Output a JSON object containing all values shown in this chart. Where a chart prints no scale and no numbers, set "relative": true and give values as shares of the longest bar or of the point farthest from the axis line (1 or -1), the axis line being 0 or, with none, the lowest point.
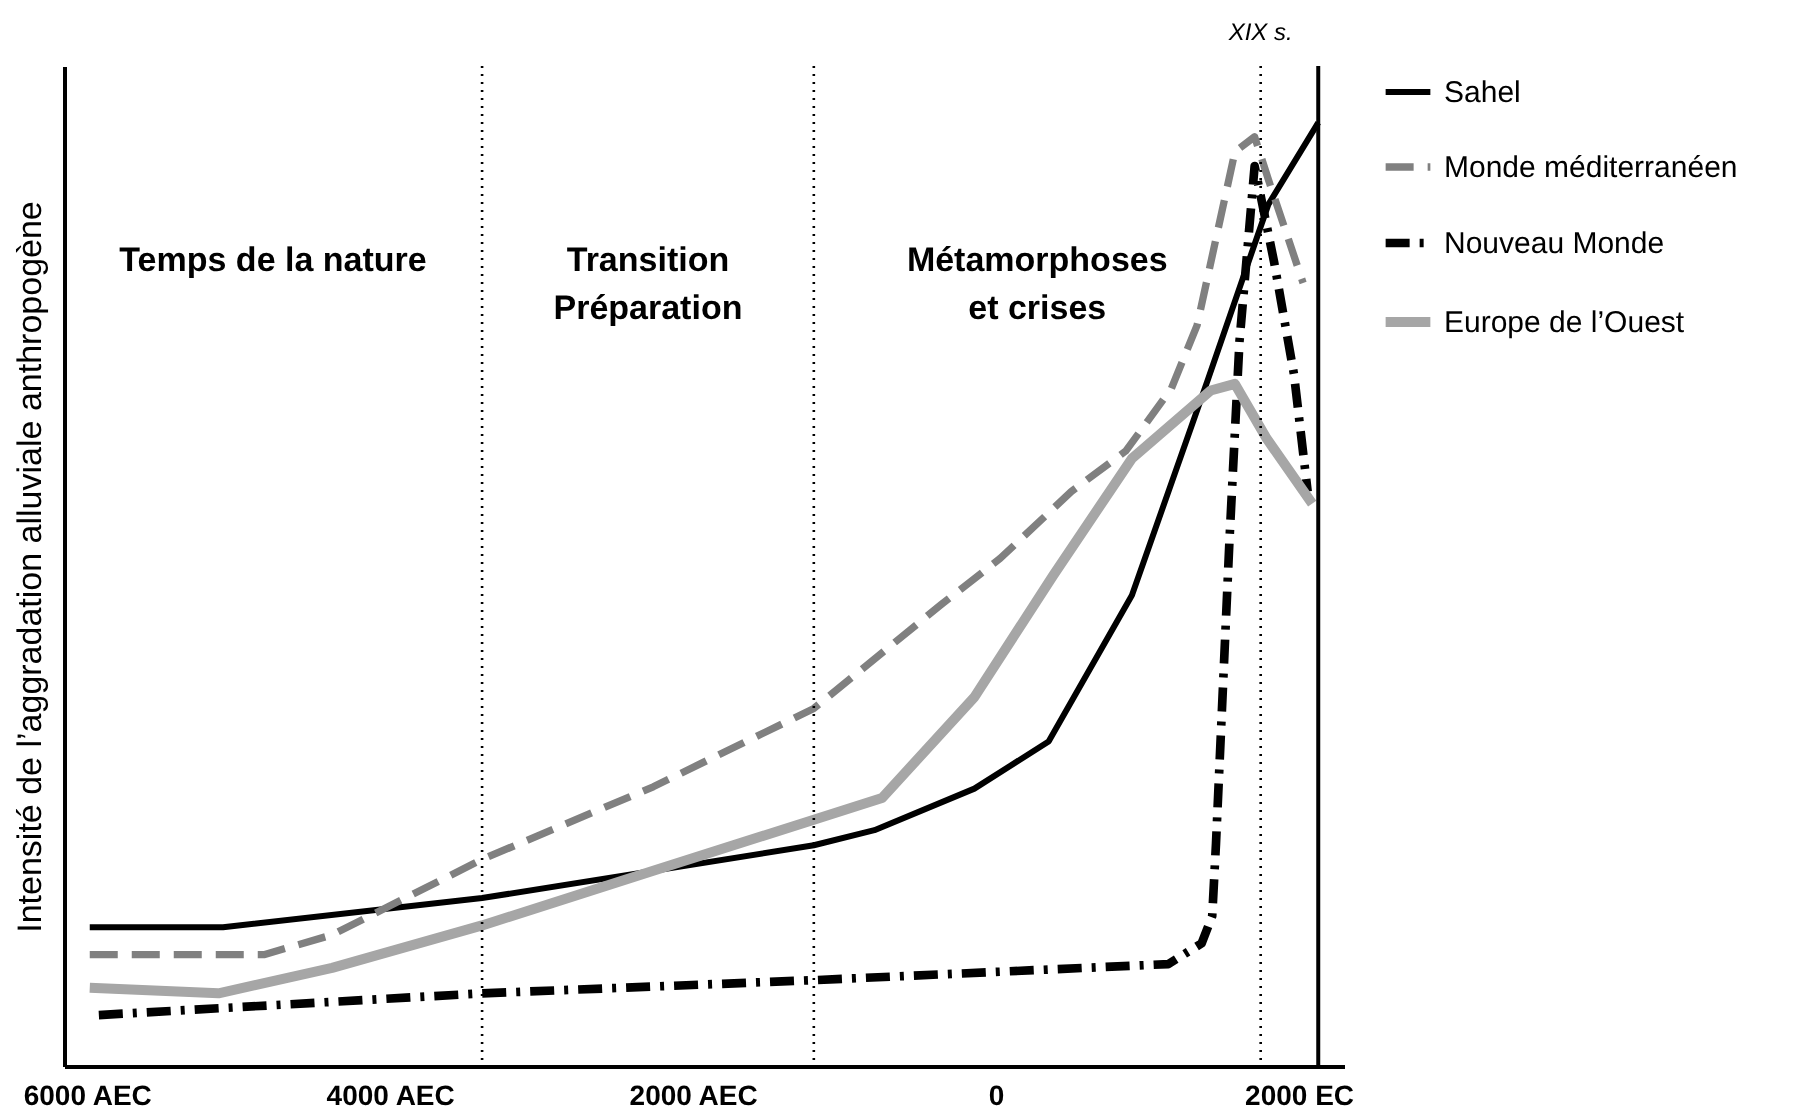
{
  "chart_data": {
    "type": "line",
    "relative": true,
    "ylabel": "Intensité de l’aggradation alluviale anthropogène",
    "xlim": [
      -6150,
      2300
    ],
    "xticks": [
      {
        "value": -6000,
        "label": "6000 AEC"
      },
      {
        "value": -4000,
        "label": "4000 AEC"
      },
      {
        "value": -2000,
        "label": "2000 AEC"
      },
      0,
      {
        "value": 2000,
        "label": "2000 EC"
      }
    ],
    "legend": "right",
    "grid": false,
    "marker": "none",
    "series": [
      {
        "name": "Sahel",
        "color": "#000000",
        "line_style": "solid",
        "x": [
          -5980,
          -5100,
          -3390,
          -1200,
          -800,
          -140,
          350,
          900,
          1400,
          1800,
          2130
        ],
        "values": [
          0.147,
          0.147,
          0.178,
          0.234,
          0.25,
          0.294,
          0.344,
          0.499,
          0.727,
          0.913,
          1.0
        ]
      },
      {
        "name": "Monde méditerranéen",
        "color": "#808080",
        "line_style": "dashed",
        "x": [
          -5980,
          -4830,
          -4380,
          -3390,
          -2260,
          -1200,
          -360,
          30,
          500,
          860,
          1160,
          1330,
          1580,
          1710,
          1800,
          2030
        ],
        "values": [
          0.118,
          0.118,
          0.139,
          0.219,
          0.296,
          0.379,
          0.489,
          0.538,
          0.609,
          0.652,
          0.718,
          0.785,
          0.969,
          0.985,
          0.94,
          0.83
        ]
      },
      {
        "name": "Nouveau Monde",
        "color": "#000000",
        "line_style": "dashdot",
        "x": [
          -5920,
          -3390,
          -1200,
          1140,
          1360,
          1430,
          1455,
          1545,
          1610,
          1710,
          1840,
          1970,
          2060
        ],
        "values": [
          0.054,
          0.077,
          0.091,
          0.108,
          0.13,
          0.159,
          0.236,
          0.561,
          0.768,
          0.954,
          0.851,
          0.733,
          0.609
        ]
      },
      {
        "name": "Europe de l’Ouest",
        "color": "#a6a6a6",
        "line_style": "solid",
        "x": [
          -5980,
          -5130,
          -4380,
          -3390,
          -2260,
          -1200,
          -750,
          -140,
          380,
          900,
          1420,
          1580,
          1790,
          2090
        ],
        "values": [
          0.083,
          0.077,
          0.104,
          0.149,
          0.207,
          0.261,
          0.284,
          0.391,
          0.52,
          0.644,
          0.716,
          0.723,
          0.665,
          0.596
        ]
      }
    ],
    "ref_lines": [
      {
        "axis": "x",
        "value": -3390,
        "label": null,
        "line_style": "dotted"
      },
      {
        "axis": "x",
        "value": -1200,
        "label": null,
        "line_style": "dotted"
      },
      {
        "axis": "x",
        "value": 1750,
        "label": "XIX s.",
        "line_style": "dotted"
      },
      {
        "axis": "x",
        "value": 2130,
        "label": null,
        "line_style": "solid"
      }
    ],
    "annotations": [
      "Temps de la nature",
      "Transition\nPréparation",
      "Métamorphoses\net crises"
    ]
  }
}
